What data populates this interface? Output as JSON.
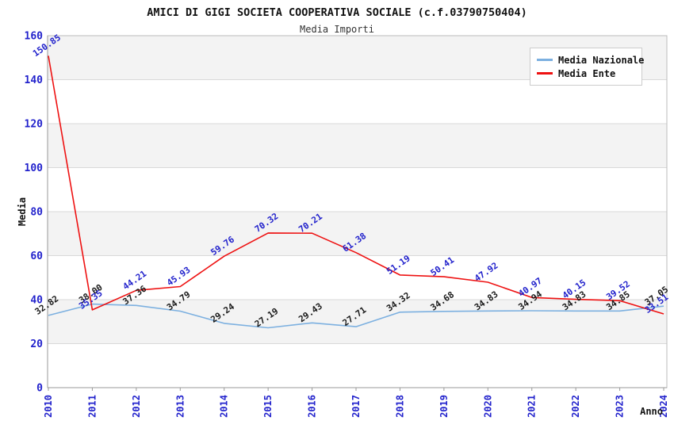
{
  "chart_data": {
    "type": "line",
    "title": "AMICI DI GIGI SOCIETA COOPERATIVA SOCIALE (c.f.03790750404)",
    "subtitle": "Media Importi",
    "xlabel": "Anno",
    "ylabel": "Media",
    "x": [
      "2010",
      "2011",
      "2012",
      "2013",
      "2014",
      "2015",
      "2016",
      "2017",
      "2018",
      "2019",
      "2020",
      "2021",
      "2022",
      "2023",
      "2024"
    ],
    "ylim": [
      0,
      160
    ],
    "ytick_step": 20,
    "yticks": [
      0,
      20,
      40,
      60,
      80,
      100,
      120,
      140,
      160
    ],
    "grid": "horizontal gridlines every 20 with alternating light-gray bands",
    "legend_position": "top-right",
    "series": [
      {
        "name": "Media Nazionale",
        "color": "#7cb0e0",
        "label_color": "#1a1a1a",
        "values": [
          32.82,
          38.0,
          37.36,
          34.79,
          29.24,
          27.19,
          29.43,
          27.71,
          34.32,
          34.68,
          34.83,
          34.94,
          34.83,
          34.85,
          37.05
        ]
      },
      {
        "name": "Media Ente",
        "color": "#ee1111",
        "label_color": "#2222cc",
        "values": [
          150.85,
          35.35,
          44.21,
          45.93,
          59.76,
          70.32,
          70.21,
          61.38,
          51.19,
          50.41,
          47.92,
          40.97,
          40.15,
          39.52,
          33.51
        ]
      }
    ],
    "colors": {
      "tick_label": "#2222cc",
      "band_fill": "#f3f3f3",
      "gridline": "#d9d9d9",
      "plot_border": "#bbbbbb",
      "axis_line": "#999999",
      "axis_title": "#111111"
    }
  }
}
